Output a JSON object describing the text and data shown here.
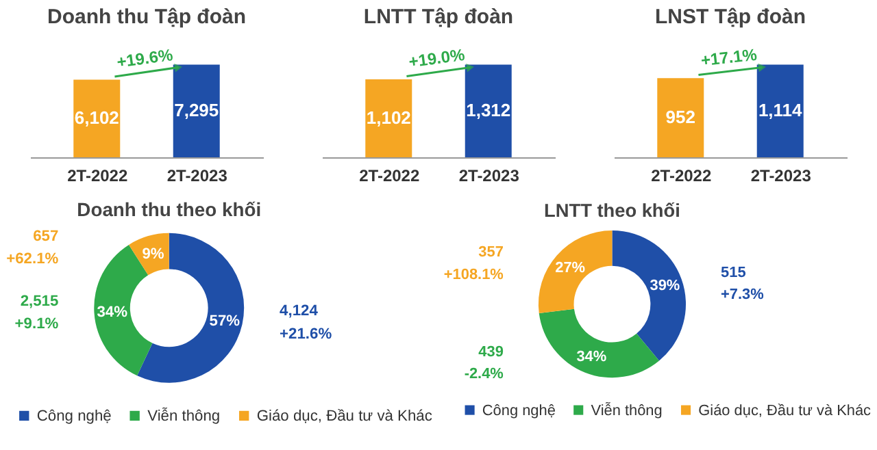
{
  "chart_data": [
    {
      "type": "bar",
      "title": "Doanh thu Tập đoàn",
      "categories": [
        "2T-2022",
        "2T-2023"
      ],
      "values": [
        6102,
        7295
      ],
      "colors": [
        "#f5a623",
        "#1f4fa8"
      ],
      "value_labels": [
        "6,102",
        "7,295"
      ],
      "annotations": [
        "+19.6%"
      ]
    },
    {
      "type": "bar",
      "title": "LNTT Tập đoàn",
      "categories": [
        "2T-2022",
        "2T-2023"
      ],
      "values": [
        1102,
        1312
      ],
      "colors": [
        "#f5a623",
        "#1f4fa8"
      ],
      "value_labels": [
        "1,102",
        "1,312"
      ],
      "annotations": [
        "+19.0%"
      ]
    },
    {
      "type": "bar",
      "title": "LNST Tập đoàn",
      "categories": [
        "2T-2022",
        "2T-2023"
      ],
      "values": [
        952,
        1114
      ],
      "colors": [
        "#f5a623",
        "#1f4fa8"
      ],
      "value_labels": [
        "952",
        "1,114"
      ],
      "annotations": [
        "+17.1%"
      ]
    },
    {
      "type": "donut",
      "title": "Doanh thu theo khối",
      "categories": [
        "Công nghệ",
        "Viễn thông",
        "Giáo dục, Đầu tư và Khác"
      ],
      "values": [
        57,
        34,
        9
      ],
      "colors": [
        "#1f4fa8",
        "#2eaa4a",
        "#f5a623"
      ],
      "value_labels": [
        "57%",
        "34%",
        "9%"
      ],
      "legend": "bottom",
      "annotations": [
        {
          "text": "4,124",
          "x": "Công nghệ"
        },
        {
          "text": "+21.6%",
          "x": "Công nghệ"
        },
        {
          "text": "2,515",
          "x": "Viễn thông"
        },
        {
          "text": "+9.1%",
          "x": "Viễn thông"
        },
        {
          "text": "657",
          "x": "Giáo dục, Đầu tư và Khác"
        },
        {
          "text": "+62.1%",
          "x": "Giáo dục, Đầu tư và Khác"
        }
      ]
    },
    {
      "type": "donut",
      "title": "LNTT theo khối",
      "categories": [
        "Công nghệ",
        "Viễn thông",
        "Giáo dục, Đầu tư và Khác"
      ],
      "values": [
        39,
        34,
        27
      ],
      "colors": [
        "#1f4fa8",
        "#2eaa4a",
        "#f5a623"
      ],
      "value_labels": [
        "39%",
        "34%",
        "27%"
      ],
      "legend": "bottom",
      "annotations": [
        {
          "text": "515",
          "x": "Công nghệ"
        },
        {
          "text": "+7.3%",
          "x": "Công nghệ"
        },
        {
          "text": "439",
          "x": "Viễn thông"
        },
        {
          "text": "-2.4%",
          "x": "Viễn thông"
        },
        {
          "text": "357",
          "x": "Giáo dục, Đầu tư và Khác"
        },
        {
          "text": "+108.1%",
          "x": "Giáo dục, Đầu tư và Khác"
        }
      ]
    }
  ]
}
